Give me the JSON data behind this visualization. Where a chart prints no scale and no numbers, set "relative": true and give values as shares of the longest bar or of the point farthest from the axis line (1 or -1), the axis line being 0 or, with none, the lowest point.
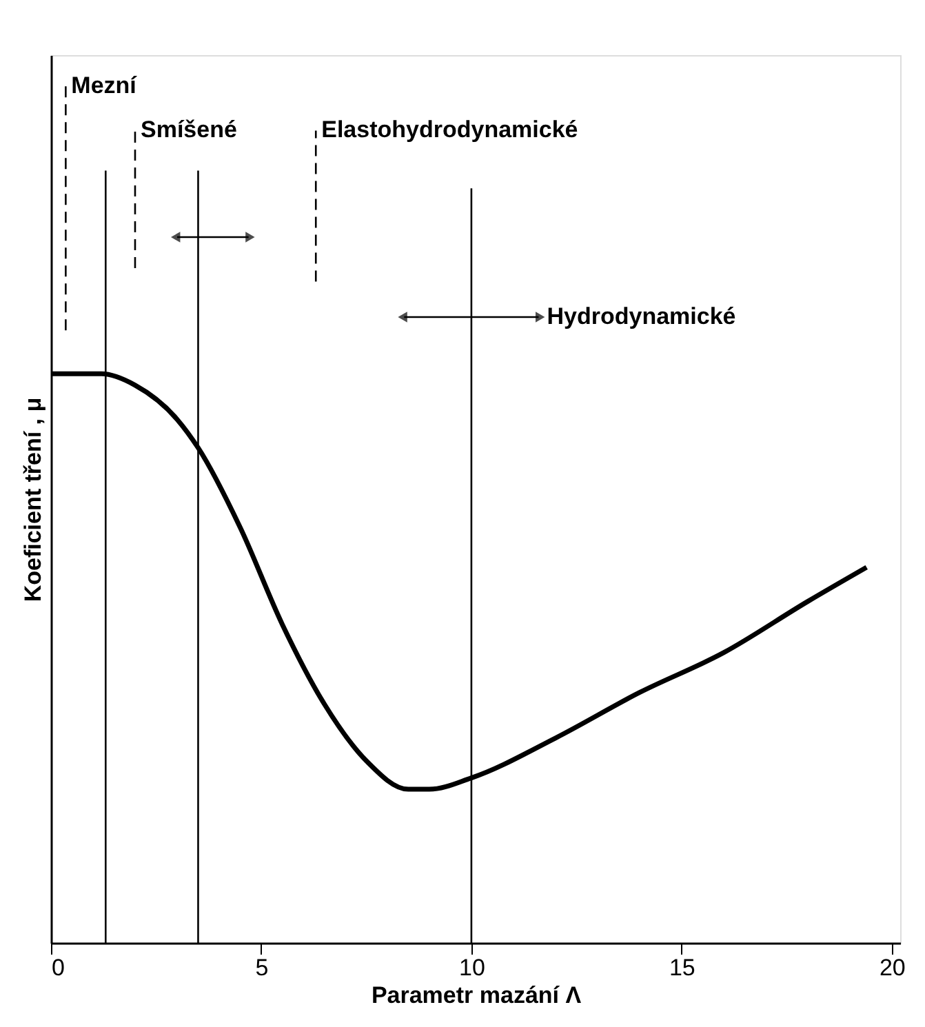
{
  "chart_data": {
    "type": "line",
    "relative": true,
    "xlabel": "Parametr mazání Λ",
    "ylabel": "Koeficient tření , μ",
    "x": [
      0,
      1.2,
      2,
      3,
      3.5,
      4.5,
      5.5,
      6.5,
      7.5,
      8.5,
      9,
      10,
      12,
      14,
      16,
      18,
      19.4
    ],
    "series": [
      {
        "color": "#000000",
        "values": [
          1,
          1,
          0.98,
          0.92,
          0.87,
          0.73,
          0.56,
          0.42,
          0.32,
          0.27,
          0.27,
          0.29,
          0.36,
          0.44,
          0.51,
          0.6,
          0.66
        ]
      }
    ],
    "xlim": [
      0,
      20.2
    ],
    "xticks": [
      0,
      5,
      10,
      15,
      20
    ],
    "ref_lines": [
      {
        "axis": "x",
        "value": 0.35,
        "label": "Mezní",
        "line_style": "dashed"
      },
      {
        "axis": "x",
        "value": 2,
        "label": "Smíšené",
        "line_style": "dashed"
      },
      {
        "axis": "x",
        "value": 6.3,
        "label": "Elastohydrodynamické",
        "line_style": "dashed"
      },
      {
        "axis": "x",
        "value": 1.3,
        "line_style": "solid"
      },
      {
        "axis": "x",
        "value": 3.5,
        "line_style": "solid"
      },
      {
        "axis": "x",
        "value": 10,
        "line_style": "solid"
      }
    ],
    "annotations": [
      "Hydrodynamické"
    ],
    "grid": false,
    "marker": "none",
    "line_style": "solid"
  }
}
